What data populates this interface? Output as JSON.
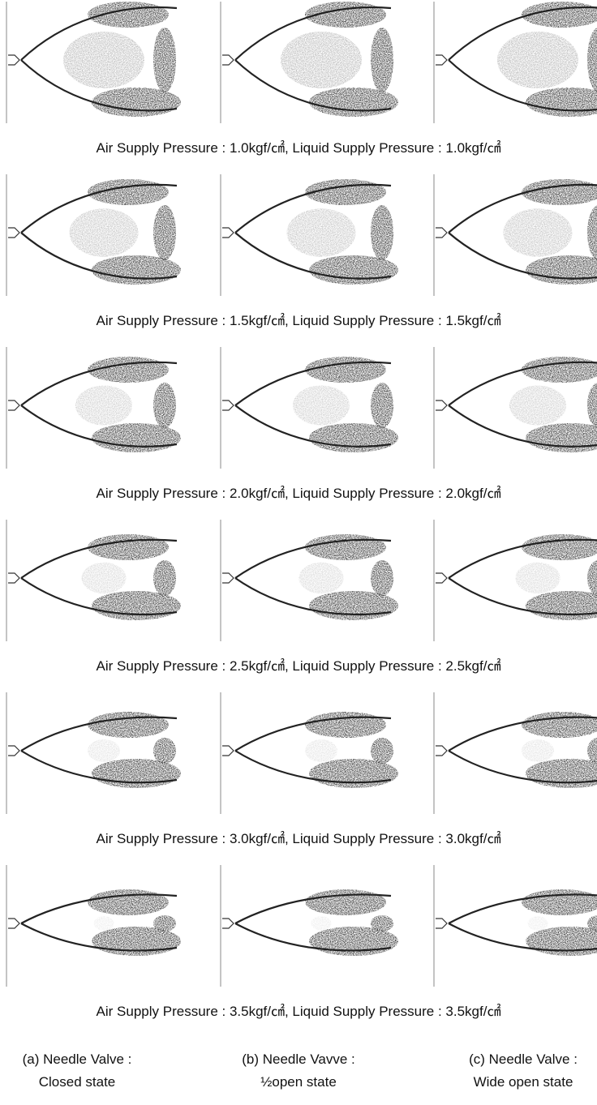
{
  "rows": [
    {
      "caption": "Air Supply Pressure : 1.0kgf/㎠, Liquid Supply Pressure : 1.0kgf/㎠"
    },
    {
      "caption": "Air Supply Pressure : 1.5kgf/㎠, Liquid Supply Pressure : 1.5kgf/㎠"
    },
    {
      "caption": "Air Supply Pressure : 2.0kgf/㎠, Liquid Supply Pressure : 2.0kgf/㎠"
    },
    {
      "caption": "Air Supply Pressure : 2.5kgf/㎠, Liquid Supply Pressure : 2.5kgf/㎠"
    },
    {
      "caption": "Air Supply Pressure : 3.0kgf/㎠, Liquid Supply Pressure : 3.0kgf/㎠"
    },
    {
      "caption": "Air Supply Pressure : 3.5kgf/㎠, Liquid Supply Pressure : 3.5kgf/㎠"
    }
  ],
  "columns": [
    {
      "label": "(a) Needle Valve :",
      "state": "Closed state"
    },
    {
      "label": "(b) Needle Vavve :",
      "state": "½open state"
    },
    {
      "label": "(c) Needle Valve :",
      "state": "Wide open state"
    }
  ]
}
